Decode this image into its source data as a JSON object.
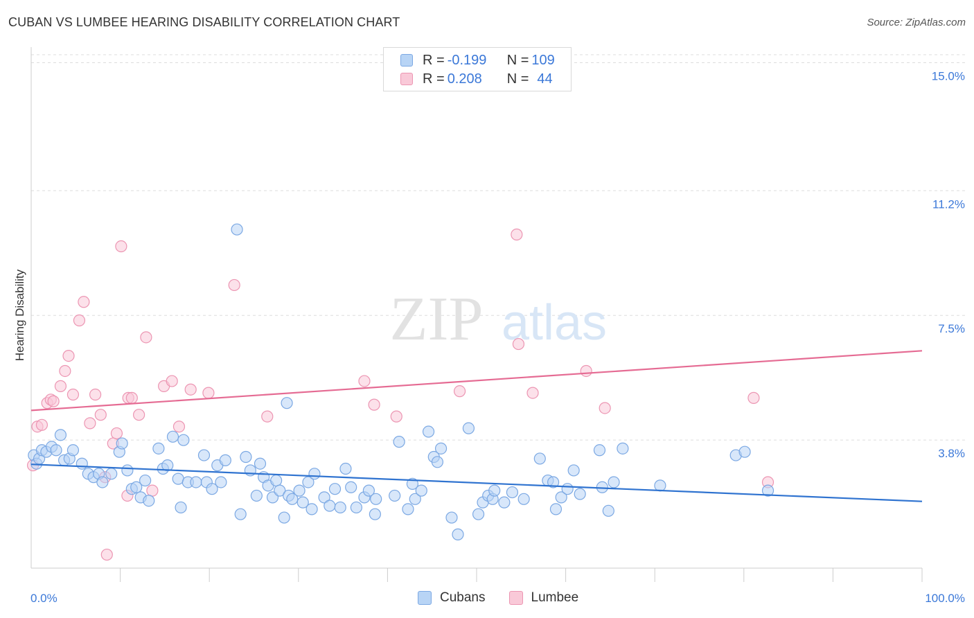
{
  "title": "CUBAN VS LUMBEE HEARING DISABILITY CORRELATION CHART",
  "source": "Source: ZipAtlas.com",
  "watermark": {
    "zip": "ZIP",
    "atlas": "atlas"
  },
  "legend": {
    "rows": [
      {
        "r_label": "R = ",
        "r_value": "-0.199",
        "n_label": "N = ",
        "n_value": "109"
      },
      {
        "r_label": "R = ",
        "r_value": "0.208",
        "n_label": "N = ",
        "n_value": "44"
      }
    ]
  },
  "chart_data": {
    "type": "scatter",
    "title": "CUBAN VS LUMBEE HEARING DISABILITY CORRELATION CHART",
    "xlabel": "",
    "ylabel": "Hearing Disability",
    "xlim": [
      0,
      100
    ],
    "ylim": [
      0,
      15.4
    ],
    "x_tick_labels": [
      "0.0%",
      "100.0%"
    ],
    "y_ticks": [
      3.8,
      7.5,
      11.2,
      15.0
    ],
    "y_tick_labels": [
      "3.8%",
      "7.5%",
      "11.2%",
      "15.0%"
    ],
    "grid": "horizontal dashed",
    "legend_position": "top-center",
    "colors": {
      "cubans_fill": "#b8d4f5",
      "cubans_stroke": "#7ba8e3",
      "cubans_line": "#2f73d0",
      "lumbee_fill": "#f9c9d8",
      "lumbee_stroke": "#ec95b2",
      "lumbee_line": "#e56b93",
      "tick_label": "#3b78d8"
    },
    "series": [
      {
        "name": "Cubans",
        "trend": [
          [
            0,
            3.08
          ],
          [
            100,
            1.98
          ]
        ],
        "points": [
          [
            0.3,
            3.35
          ],
          [
            0.6,
            3.1
          ],
          [
            0.9,
            3.25
          ],
          [
            1.2,
            3.5
          ],
          [
            1.7,
            3.45
          ],
          [
            2.3,
            3.6
          ],
          [
            2.8,
            3.5
          ],
          [
            3.3,
            3.95
          ],
          [
            3.7,
            3.2
          ],
          [
            4.3,
            3.25
          ],
          [
            4.7,
            3.5
          ],
          [
            5.7,
            3.1
          ],
          [
            6.4,
            2.8
          ],
          [
            7.0,
            2.7
          ],
          [
            7.6,
            2.8
          ],
          [
            8.0,
            2.55
          ],
          [
            9.0,
            2.8
          ],
          [
            9.9,
            3.45
          ],
          [
            10.2,
            3.7
          ],
          [
            10.8,
            2.9
          ],
          [
            11.3,
            2.35
          ],
          [
            11.8,
            2.4
          ],
          [
            12.3,
            2.1
          ],
          [
            12.8,
            2.6
          ],
          [
            13.2,
            2.0
          ],
          [
            14.3,
            3.55
          ],
          [
            14.8,
            2.95
          ],
          [
            15.3,
            3.05
          ],
          [
            15.9,
            3.9
          ],
          [
            16.5,
            2.65
          ],
          [
            16.8,
            1.8
          ],
          [
            17.1,
            3.8
          ],
          [
            17.6,
            2.55
          ],
          [
            18.5,
            2.55
          ],
          [
            19.4,
            3.35
          ],
          [
            19.7,
            2.55
          ],
          [
            20.3,
            2.35
          ],
          [
            20.9,
            3.05
          ],
          [
            21.3,
            2.55
          ],
          [
            21.8,
            3.2
          ],
          [
            23.1,
            10.05
          ],
          [
            23.5,
            1.6
          ],
          [
            24.1,
            3.3
          ],
          [
            24.6,
            2.9
          ],
          [
            25.3,
            2.15
          ],
          [
            25.7,
            3.1
          ],
          [
            26.1,
            2.7
          ],
          [
            26.6,
            2.45
          ],
          [
            27.1,
            2.1
          ],
          [
            27.5,
            2.6
          ],
          [
            27.9,
            2.3
          ],
          [
            28.4,
            1.5
          ],
          [
            28.7,
            4.9
          ],
          [
            28.9,
            2.15
          ],
          [
            29.3,
            2.05
          ],
          [
            30.1,
            2.3
          ],
          [
            30.5,
            1.95
          ],
          [
            31.1,
            2.55
          ],
          [
            31.5,
            1.75
          ],
          [
            31.8,
            2.8
          ],
          [
            32.9,
            2.1
          ],
          [
            33.5,
            1.85
          ],
          [
            34.1,
            2.35
          ],
          [
            34.7,
            1.8
          ],
          [
            35.3,
            2.95
          ],
          [
            35.9,
            2.4
          ],
          [
            36.5,
            1.8
          ],
          [
            37.4,
            2.1
          ],
          [
            37.9,
            2.3
          ],
          [
            38.6,
            1.6
          ],
          [
            38.7,
            2.05
          ],
          [
            40.8,
            2.15
          ],
          [
            41.3,
            3.75
          ],
          [
            42.3,
            1.75
          ],
          [
            42.8,
            2.5
          ],
          [
            43.1,
            2.05
          ],
          [
            43.8,
            2.3
          ],
          [
            44.6,
            4.05
          ],
          [
            45.2,
            3.3
          ],
          [
            45.6,
            3.15
          ],
          [
            46.0,
            3.55
          ],
          [
            47.2,
            1.5
          ],
          [
            47.9,
            1.0
          ],
          [
            49.1,
            4.15
          ],
          [
            50.2,
            1.6
          ],
          [
            50.7,
            1.95
          ],
          [
            51.3,
            2.15
          ],
          [
            51.8,
            2.05
          ],
          [
            52.0,
            2.3
          ],
          [
            53.1,
            1.95
          ],
          [
            54.0,
            2.25
          ],
          [
            55.3,
            2.05
          ],
          [
            57.1,
            3.25
          ],
          [
            58.0,
            2.6
          ],
          [
            58.6,
            2.55
          ],
          [
            58.9,
            1.75
          ],
          [
            59.5,
            2.1
          ],
          [
            60.2,
            2.35
          ],
          [
            60.9,
            2.9
          ],
          [
            61.6,
            2.2
          ],
          [
            63.8,
            3.5
          ],
          [
            64.1,
            2.4
          ],
          [
            64.8,
            1.7
          ],
          [
            65.4,
            2.55
          ],
          [
            66.4,
            3.55
          ],
          [
            70.6,
            2.45
          ],
          [
            79.1,
            3.35
          ],
          [
            80.1,
            3.45
          ],
          [
            82.7,
            2.3
          ]
        ]
      },
      {
        "name": "Lumbee",
        "trend": [
          [
            0,
            4.68
          ],
          [
            100,
            6.45
          ]
        ],
        "points": [
          [
            0.2,
            3.05
          ],
          [
            0.7,
            4.2
          ],
          [
            1.2,
            4.25
          ],
          [
            1.8,
            4.9
          ],
          [
            2.2,
            5.0
          ],
          [
            2.5,
            4.95
          ],
          [
            3.3,
            5.4
          ],
          [
            3.8,
            5.85
          ],
          [
            4.2,
            6.3
          ],
          [
            4.7,
            5.15
          ],
          [
            5.4,
            7.35
          ],
          [
            5.9,
            7.9
          ],
          [
            6.6,
            4.3
          ],
          [
            7.2,
            5.15
          ],
          [
            7.8,
            4.55
          ],
          [
            8.3,
            2.7
          ],
          [
            8.5,
            0.4
          ],
          [
            9.2,
            3.7
          ],
          [
            9.6,
            4.0
          ],
          [
            10.1,
            9.55
          ],
          [
            10.8,
            2.15
          ],
          [
            10.9,
            5.05
          ],
          [
            11.3,
            5.05
          ],
          [
            12.1,
            4.55
          ],
          [
            12.9,
            6.85
          ],
          [
            13.6,
            2.3
          ],
          [
            14.9,
            5.4
          ],
          [
            15.8,
            5.55
          ],
          [
            16.6,
            4.2
          ],
          [
            17.9,
            5.3
          ],
          [
            19.9,
            5.2
          ],
          [
            22.8,
            8.4
          ],
          [
            26.5,
            4.5
          ],
          [
            37.4,
            5.55
          ],
          [
            38.5,
            4.85
          ],
          [
            41.0,
            4.5
          ],
          [
            48.1,
            5.25
          ],
          [
            54.5,
            9.9
          ],
          [
            54.7,
            6.65
          ],
          [
            56.3,
            5.2
          ],
          [
            62.3,
            5.85
          ],
          [
            64.4,
            4.75
          ],
          [
            81.1,
            5.05
          ],
          [
            82.7,
            2.55
          ]
        ]
      }
    ]
  }
}
